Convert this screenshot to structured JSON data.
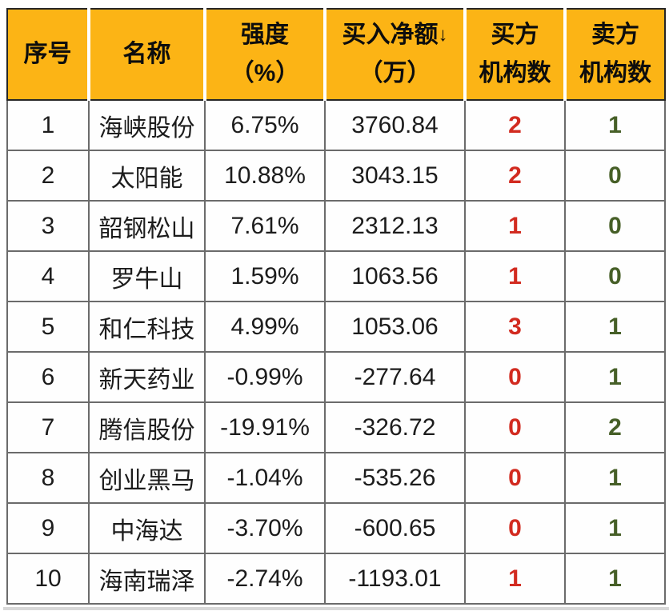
{
  "chart_data": {
    "type": "table",
    "columns": [
      "序号",
      "名称",
      "强度（%）",
      "买入净额↓（万）",
      "买方机构数",
      "卖方机构数"
    ],
    "rows": [
      [
        "1",
        "海峡股份",
        "6.75%",
        "3760.84",
        "2",
        "1"
      ],
      [
        "2",
        "太阳能",
        "10.88%",
        "3043.15",
        "2",
        "0"
      ],
      [
        "3",
        "韶钢松山",
        "7.61%",
        "2312.13",
        "1",
        "0"
      ],
      [
        "4",
        "罗牛山",
        "1.59%",
        "1063.56",
        "1",
        "0"
      ],
      [
        "5",
        "和仁科技",
        "4.99%",
        "1053.06",
        "3",
        "1"
      ],
      [
        "6",
        "新天药业",
        "-0.99%",
        "-277.64",
        "0",
        "1"
      ],
      [
        "7",
        "腾信股份",
        "-19.91%",
        "-326.72",
        "0",
        "2"
      ],
      [
        "8",
        "创业黑马",
        "-1.04%",
        "-535.26",
        "0",
        "1"
      ],
      [
        "9",
        "中海达",
        "-3.70%",
        "-600.65",
        "0",
        "1"
      ],
      [
        "10",
        "海南瑞泽",
        "-2.74%",
        "-1193.01",
        "1",
        "1"
      ]
    ],
    "sorted_column": "买入净额（万）",
    "sort_direction": "descending"
  },
  "header": {
    "index": {
      "line1": "序号"
    },
    "name": {
      "line1": "名称"
    },
    "strength": {
      "line1": "强度",
      "line2": "（%）"
    },
    "net_buy": {
      "line1": "买入净额",
      "sort_arrow": "↓",
      "line2": "（万）"
    },
    "buyers": {
      "line1": "买方",
      "line2": "机构数"
    },
    "sellers": {
      "line1": "卖方",
      "line2": "机构数"
    }
  },
  "colors": {
    "header_bg": "#fcb415",
    "header_text": "#0d0d0d",
    "buyers_text": "#d22b20",
    "sellers_text": "#465f27",
    "body_text": "#1c1c1c",
    "grid_line": "#6b6b6b",
    "outer_border": "#262626"
  }
}
